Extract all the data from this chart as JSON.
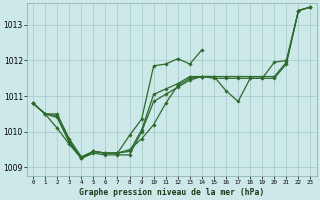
{
  "title": "Graphe pression niveau de la mer (hPa)",
  "bg_color": "#cce8e8",
  "grid_color": "#aacccc",
  "line_color": "#2d6a2d",
  "xlim": [
    -0.5,
    23.5
  ],
  "ylim": [
    1008.75,
    1013.6
  ],
  "xticks": [
    0,
    1,
    2,
    3,
    4,
    5,
    6,
    7,
    8,
    9,
    10,
    11,
    12,
    13,
    14,
    15,
    16,
    17,
    18,
    19,
    20,
    21,
    22,
    23
  ],
  "yticks": [
    1009,
    1010,
    1011,
    1012,
    1013
  ],
  "series": [
    {
      "x": [
        0,
        1,
        2,
        3,
        4,
        5,
        6,
        7,
        8,
        9,
        10,
        11,
        12,
        13,
        14,
        15,
        16,
        17,
        18,
        19,
        20,
        21,
        22,
        23
      ],
      "y": [
        1010.8,
        1010.5,
        1010.5,
        1009.8,
        1009.3,
        1009.45,
        1009.4,
        1009.4,
        1009.5,
        1009.8,
        1010.2,
        1010.8,
        1011.3,
        1011.5,
        1011.55,
        1011.55,
        1011.15,
        1010.85,
        1011.5,
        1011.5,
        1011.95,
        1012.0,
        1013.4,
        1013.5
      ]
    },
    {
      "x": [
        0,
        1,
        2,
        3,
        4,
        5,
        6,
        7,
        8,
        9,
        10,
        11,
        12,
        13,
        14,
        15,
        16,
        17,
        18,
        19,
        20,
        21,
        22,
        23
      ],
      "y": [
        1010.8,
        1010.5,
        1010.4,
        1009.7,
        1009.25,
        1009.4,
        1009.35,
        1009.35,
        1009.35,
        1010.0,
        1010.85,
        1011.05,
        1011.25,
        1011.45,
        1011.55,
        1011.55,
        1011.55,
        1011.55,
        1011.55,
        1011.55,
        1011.55,
        1011.95,
        1013.4,
        1013.5
      ]
    },
    {
      "x": [
        0,
        1,
        2,
        3,
        4,
        5,
        6,
        7,
        8,
        9,
        10,
        11,
        12,
        13,
        14,
        15,
        16,
        17,
        18,
        19,
        20,
        21,
        22,
        23
      ],
      "y": [
        1010.8,
        1010.5,
        1010.45,
        1009.75,
        1009.25,
        1009.45,
        1009.4,
        1009.4,
        1009.45,
        1010.05,
        1011.05,
        1011.2,
        1011.35,
        1011.55,
        1011.55,
        1011.5,
        1011.5,
        1011.5,
        1011.5,
        1011.5,
        1011.5,
        1011.9,
        1013.4,
        1013.5
      ]
    },
    {
      "x": [
        0,
        1,
        2,
        3,
        4,
        5,
        6,
        7,
        8,
        9,
        10,
        11,
        12,
        13,
        14
      ],
      "y": [
        1010.8,
        1010.5,
        1010.1,
        1009.65,
        1009.25,
        1009.45,
        1009.4,
        1009.4,
        1009.9,
        1010.35,
        1011.85,
        1011.9,
        1012.05,
        1011.9,
        1012.3
      ]
    }
  ]
}
